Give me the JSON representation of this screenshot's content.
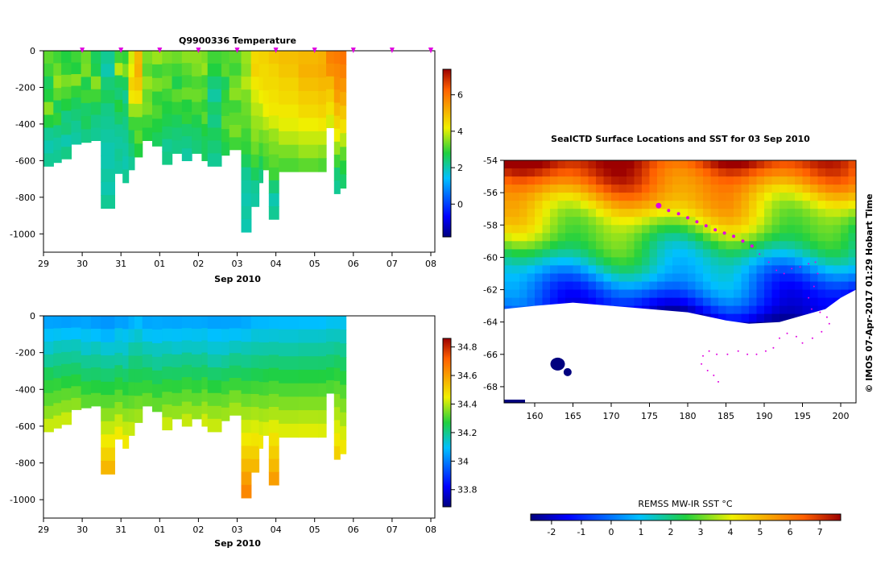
{
  "chart_data": [
    {
      "type": "heatmap",
      "panel": "top-left",
      "title": "Q9900336  Temperature",
      "xlabel": "Sep 2010",
      "x_ticks": [
        "29",
        "30",
        "31",
        "01",
        "02",
        "03",
        "04",
        "05",
        "06",
        "07",
        "08"
      ],
      "y_ticks": [
        "0",
        "-200",
        "-400",
        "-600",
        "-800",
        "-1000"
      ],
      "ylim": [
        -1100,
        0
      ],
      "colorbar": {
        "ticks": [
          "6",
          "4",
          "2",
          "0"
        ],
        "range": [
          -1.8,
          7.4
        ]
      },
      "profile_marker_color": "#e000e0",
      "columns": [
        {
          "x": 0.0,
          "w": 0.25,
          "bottom": -630,
          "values": [
            3.2,
            3.0,
            2.6,
            2.8,
            3.5,
            2.8,
            2.2,
            2.0,
            2.2
          ]
        },
        {
          "x": 0.25,
          "w": 0.2,
          "bottom": -610,
          "values": [
            3.0,
            3.3,
            3.6,
            3.2,
            2.6,
            2.9,
            2.3,
            2.1,
            2.2
          ]
        },
        {
          "x": 0.45,
          "w": 0.25,
          "bottom": -590,
          "values": [
            2.8,
            2.9,
            3.4,
            3.1,
            2.8,
            2.3,
            2.4,
            2.0,
            2.3
          ]
        },
        {
          "x": 0.7,
          "w": 0.25,
          "bottom": -510,
          "values": [
            3.0,
            2.8,
            3.5,
            2.9,
            2.6,
            2.4,
            2.2,
            2.1
          ]
        },
        {
          "x": 0.95,
          "w": 0.25,
          "bottom": -500,
          "values": [
            3.3,
            3.4,
            2.7,
            3.0,
            2.5,
            2.6,
            2.3
          ]
        },
        {
          "x": 1.2,
          "w": 0.25,
          "bottom": -490,
          "values": [
            2.6,
            2.7,
            3.5,
            3.0,
            2.6,
            2.3,
            2.2
          ]
        },
        {
          "x": 1.45,
          "w": 0.35,
          "bottom": -860,
          "values": [
            2.2,
            2.0,
            2.4,
            2.6,
            2.3,
            2.2,
            2.1,
            2.0,
            2.0,
            2.1,
            2.0,
            2.2
          ]
        },
        {
          "x": 1.8,
          "w": 0.2,
          "bottom": -670,
          "values": [
            3.0,
            3.8,
            2.6,
            2.4,
            2.8,
            2.5,
            2.2,
            2.1,
            2.2,
            2.1
          ]
        },
        {
          "x": 2.0,
          "w": 0.15,
          "bottom": -720,
          "values": [
            2.9,
            3.4,
            2.6,
            2.2,
            2.5,
            2.3,
            2.2,
            2.1,
            2.0,
            2.2
          ]
        },
        {
          "x": 2.15,
          "w": 0.15,
          "bottom": -650,
          "values": [
            4.0,
            4.2,
            4.6,
            4.3,
            3.6,
            3.0,
            2.6,
            2.4,
            2.2
          ]
        },
        {
          "x": 2.3,
          "w": 0.2,
          "bottom": -580,
          "values": [
            5.0,
            5.1,
            4.8,
            4.4,
            3.6,
            3.0,
            3.2,
            2.8
          ]
        },
        {
          "x": 2.5,
          "w": 0.25,
          "bottom": -490,
          "values": [
            3.4,
            3.2,
            3.6,
            3.3,
            3.4,
            3.0,
            2.8
          ]
        },
        {
          "x": 2.75,
          "w": 0.25,
          "bottom": -520,
          "values": [
            3.6,
            3.0,
            3.4,
            2.9,
            3.1,
            2.8,
            2.6
          ]
        },
        {
          "x": 3.0,
          "w": 0.25,
          "bottom": -620,
          "values": [
            3.4,
            3.1,
            3.3,
            3.0,
            2.8,
            2.7,
            2.5,
            2.2,
            2.3
          ]
        },
        {
          "x": 3.25,
          "w": 0.25,
          "bottom": -560,
          "values": [
            3.3,
            3.0,
            2.7,
            3.2,
            2.9,
            2.6,
            2.4,
            2.3
          ]
        },
        {
          "x": 3.5,
          "w": 0.25,
          "bottom": -600,
          "values": [
            3.5,
            3.2,
            3.0,
            3.3,
            2.8,
            2.9,
            2.5,
            2.3,
            2.1
          ]
        },
        {
          "x": 3.75,
          "w": 0.25,
          "bottom": -560,
          "values": [
            3.5,
            3.4,
            3.1,
            3.3,
            3.0,
            2.7,
            2.5,
            2.4
          ]
        },
        {
          "x": 4.0,
          "w": 0.15,
          "bottom": -600,
          "values": [
            3.4,
            3.6,
            3.0,
            3.2,
            2.9,
            3.2,
            2.8,
            2.6,
            2.6
          ]
        },
        {
          "x": 4.15,
          "w": 0.35,
          "bottom": -630,
          "values": [
            3.0,
            2.8,
            2.4,
            2.1,
            2.5,
            2.3,
            2.6,
            2.4,
            2.2
          ]
        },
        {
          "x": 4.5,
          "w": 0.2,
          "bottom": -570,
          "values": [
            3.1,
            3.2,
            2.6,
            2.9,
            3.0,
            3.2,
            2.9,
            2.7
          ]
        },
        {
          "x": 4.7,
          "w": 0.3,
          "bottom": -540,
          "values": [
            3.2,
            3.0,
            3.3,
            3.5,
            3.0,
            3.2,
            3.4,
            3.0
          ]
        },
        {
          "x": 5.0,
          "w": 0.25,
          "bottom": -990,
          "values": [
            3.6,
            3.5,
            3.8,
            3.4,
            3.3,
            3.2,
            3.0,
            2.9,
            2.6,
            2.2,
            2.1,
            2.0,
            2.1,
            2.0
          ]
        },
        {
          "x": 5.25,
          "w": 0.2,
          "bottom": -850,
          "values": [
            4.5,
            4.6,
            4.3,
            4.0,
            3.8,
            3.6,
            3.5,
            3.3,
            3.0,
            2.6,
            2.2,
            2.1
          ]
        },
        {
          "x": 5.45,
          "w": 0.1,
          "bottom": -720,
          "values": [
            4.6,
            4.5,
            4.4,
            4.2,
            3.8,
            3.6,
            3.3,
            3.0,
            2.6,
            2.3
          ]
        },
        {
          "x": 5.55,
          "w": 0.15,
          "bottom": -650,
          "values": [
            4.6,
            4.5,
            4.5,
            4.3,
            4.2,
            3.8,
            3.4,
            3.2,
            3.0
          ]
        },
        {
          "x": 5.7,
          "w": 0.25,
          "bottom": -920,
          "values": [
            4.8,
            4.6,
            4.5,
            4.4,
            4.3,
            4.0,
            3.6,
            3.4,
            3.2,
            3.0,
            2.4,
            2.0,
            2.2
          ]
        },
        {
          "x": 5.95,
          "w": 0.5,
          "bottom": -660,
          "values": [
            4.9,
            4.8,
            4.6,
            4.5,
            4.3,
            4.1,
            3.8,
            3.4,
            3.1
          ]
        },
        {
          "x": 6.45,
          "w": 0.5,
          "bottom": -660,
          "values": [
            5.0,
            5.1,
            4.9,
            4.7,
            4.5,
            4.2,
            3.9,
            3.6,
            3.2
          ]
        },
        {
          "x": 6.95,
          "w": 0.2,
          "bottom": -660,
          "values": [
            5.1,
            5.2,
            5.0,
            4.8,
            4.6,
            4.3,
            3.9,
            3.5,
            3.1
          ]
        },
        {
          "x": 7.15,
          "w": 0.2,
          "bottom": -420,
          "values": [
            5.8,
            5.6,
            5.0,
            4.7,
            4.4,
            4.0
          ]
        },
        {
          "x": 7.35,
          "w": 0.15,
          "bottom": -780,
          "values": [
            5.9,
            5.7,
            5.6,
            5.4,
            5.0,
            4.6,
            4.2,
            3.6,
            3.0,
            2.4,
            2.2
          ]
        },
        {
          "x": 7.5,
          "w": 0.15,
          "bottom": -750,
          "values": [
            6.0,
            5.8,
            5.5,
            5.2,
            4.8,
            4.4,
            3.8,
            3.2,
            2.8,
            2.5
          ]
        }
      ],
      "profile_markers": [
        1.0,
        2.0,
        3.0,
        4.0,
        5.0,
        6.0,
        7.0,
        8.0,
        9.0,
        10.0,
        10.0
      ]
    },
    {
      "type": "heatmap",
      "panel": "bottom-left",
      "xlabel": "Sep 2010",
      "x_ticks": [
        "29",
        "30",
        "31",
        "01",
        "02",
        "03",
        "04",
        "05",
        "06",
        "07",
        "08"
      ],
      "y_ticks": [
        "0",
        "-200",
        "-400",
        "-600",
        "-800",
        "-1000"
      ],
      "ylim": [
        -1100,
        0
      ],
      "colorbar": {
        "ticks": [
          "34.8",
          "34.6",
          "34.4",
          "34.2",
          "34",
          "33.8"
        ],
        "range": [
          33.68,
          34.86
        ]
      },
      "columns_ref": "top-left"
    },
    {
      "type": "heatmap",
      "panel": "right-map",
      "title": "SealCTD Surface Locations and SST for 03 Sep 2010",
      "x_ticks": [
        "160",
        "165",
        "170",
        "175",
        "180",
        "185",
        "190",
        "195",
        "200"
      ],
      "y_ticks": [
        "-54",
        "-56",
        "-58",
        "-60",
        "-62",
        "-64",
        "-66",
        "-68"
      ],
      "xlim": [
        156,
        202
      ],
      "ylim": [
        -69,
        -54
      ],
      "side_label": "© IMOS 07-Apr-2017 01:29 Hobart Time",
      "colorbar": {
        "label": "REMSS MW-IR SST °C",
        "ticks": [
          "-2",
          "-1",
          "0",
          "1",
          "2",
          "3",
          "4",
          "5",
          "6",
          "7"
        ],
        "range": [
          -2.7,
          7.7
        ]
      },
      "track_color": "#e000e0",
      "surface_locations": [
        [
          176.2,
          -56.8
        ],
        [
          177.5,
          -57.1
        ],
        [
          178.8,
          -57.3
        ],
        [
          180.0,
          -57.55
        ],
        [
          181.2,
          -57.8
        ],
        [
          182.4,
          -58.05
        ],
        [
          183.6,
          -58.3
        ],
        [
          184.8,
          -58.5
        ],
        [
          186.0,
          -58.7
        ],
        [
          187.2,
          -59.0
        ],
        [
          188.4,
          -59.3
        ]
      ],
      "track_points": [
        [
          189.4,
          -59.8
        ],
        [
          190.6,
          -60.3
        ],
        [
          191.6,
          -60.8
        ],
        [
          192.6,
          -61.0
        ],
        [
          193.6,
          -60.7
        ],
        [
          194.7,
          -60.6
        ],
        [
          195.8,
          -60.4
        ],
        [
          196.7,
          -60.3
        ],
        [
          197.0,
          -61.0
        ],
        [
          196.5,
          -61.8
        ],
        [
          195.8,
          -62.5
        ],
        [
          196.2,
          -63.2
        ],
        [
          197.3,
          -63.4
        ],
        [
          198.2,
          -63.7
        ],
        [
          198.5,
          -64.1
        ],
        [
          197.5,
          -64.6
        ],
        [
          196.3,
          -65.0
        ],
        [
          195.0,
          -65.3
        ],
        [
          194.2,
          -64.9
        ],
        [
          193.0,
          -64.7
        ],
        [
          192.0,
          -65.0
        ],
        [
          191.2,
          -65.6
        ],
        [
          190.2,
          -65.8
        ],
        [
          189.0,
          -66.0
        ],
        [
          187.8,
          -66.0
        ],
        [
          186.6,
          -65.8
        ],
        [
          185.2,
          -66.0
        ],
        [
          183.8,
          -66.0
        ],
        [
          182.8,
          -65.8
        ],
        [
          182.0,
          -66.1
        ],
        [
          181.8,
          -66.6
        ],
        [
          182.6,
          -67.0
        ],
        [
          183.4,
          -67.3
        ],
        [
          184.0,
          -67.7
        ]
      ]
    }
  ]
}
